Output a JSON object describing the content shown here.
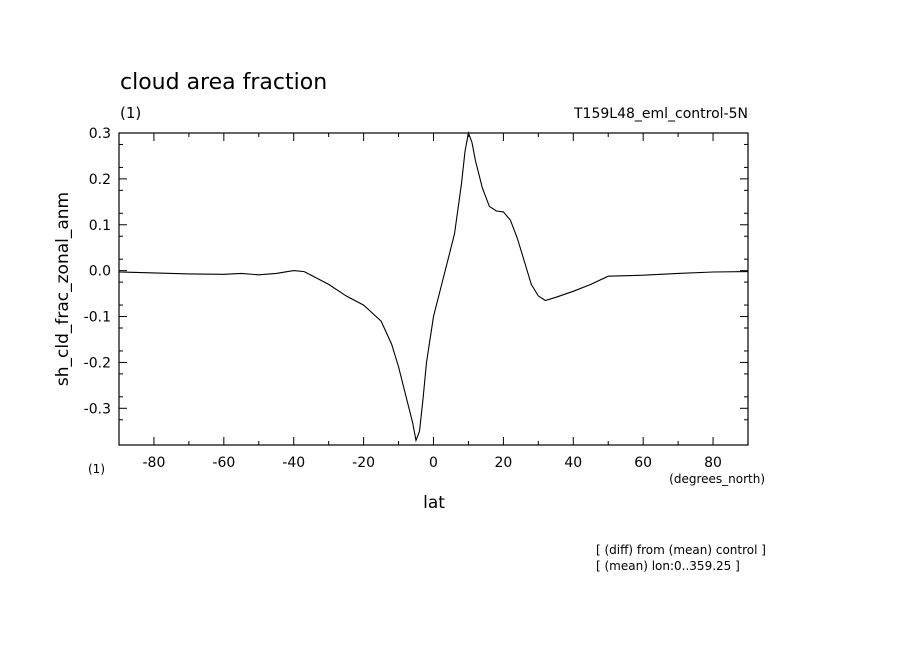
{
  "chart_data": {
    "type": "line",
    "title": "cloud area fraction",
    "units_left": "(1)",
    "run_label": "T159L48_eml_control-5N",
    "ylabel": "sh_cld_frac_zonal_anm",
    "xlabel": "lat",
    "x_units_left": "(1)",
    "x_units_right": "(degrees_north)",
    "notes": [
      "[ (diff) from (mean) control ]",
      "[ (mean) lon:0..359.25 ]"
    ],
    "xlim": [
      -90,
      90
    ],
    "ylim": [
      -0.38,
      0.3
    ],
    "xticks": [
      -80,
      -60,
      -40,
      -20,
      0,
      20,
      40,
      60,
      80
    ],
    "xtick_labels": [
      "-80",
      "-60",
      "-40",
      "-20",
      "0",
      "20",
      "40",
      "60",
      "80"
    ],
    "yticks": [
      -0.3,
      -0.2,
      -0.1,
      0.0,
      0.1,
      0.2,
      0.3
    ],
    "ytick_labels": [
      "-0.3",
      "-0.2",
      "-0.1",
      "0.0",
      "0.1",
      "0.2",
      "0.3"
    ],
    "grid": false,
    "series": [
      {
        "x": [
          -90,
          -80,
          -70,
          -60,
          -55,
          -50,
          -45,
          -40,
          -37,
          -35,
          -30,
          -25,
          -20,
          -15,
          -12,
          -10,
          -8,
          -6,
          -5,
          -4,
          -3,
          -2,
          0,
          2,
          4,
          6,
          8,
          9,
          10,
          11,
          12,
          14,
          16,
          18,
          20,
          22,
          24,
          26,
          28,
          30,
          32,
          35,
          40,
          45,
          50,
          60,
          70,
          80,
          90
        ],
        "y": [
          -0.003,
          -0.005,
          -0.007,
          -0.008,
          -0.006,
          -0.009,
          -0.006,
          0.0,
          -0.002,
          -0.01,
          -0.03,
          -0.055,
          -0.075,
          -0.11,
          -0.16,
          -0.21,
          -0.27,
          -0.33,
          -0.37,
          -0.35,
          -0.28,
          -0.2,
          -0.1,
          -0.04,
          0.02,
          0.08,
          0.19,
          0.26,
          0.3,
          0.28,
          0.24,
          0.18,
          0.14,
          0.13,
          0.128,
          0.11,
          0.07,
          0.02,
          -0.03,
          -0.055,
          -0.065,
          -0.058,
          -0.045,
          -0.03,
          -0.012,
          -0.01,
          -0.006,
          -0.003,
          -0.002
        ]
      }
    ]
  }
}
